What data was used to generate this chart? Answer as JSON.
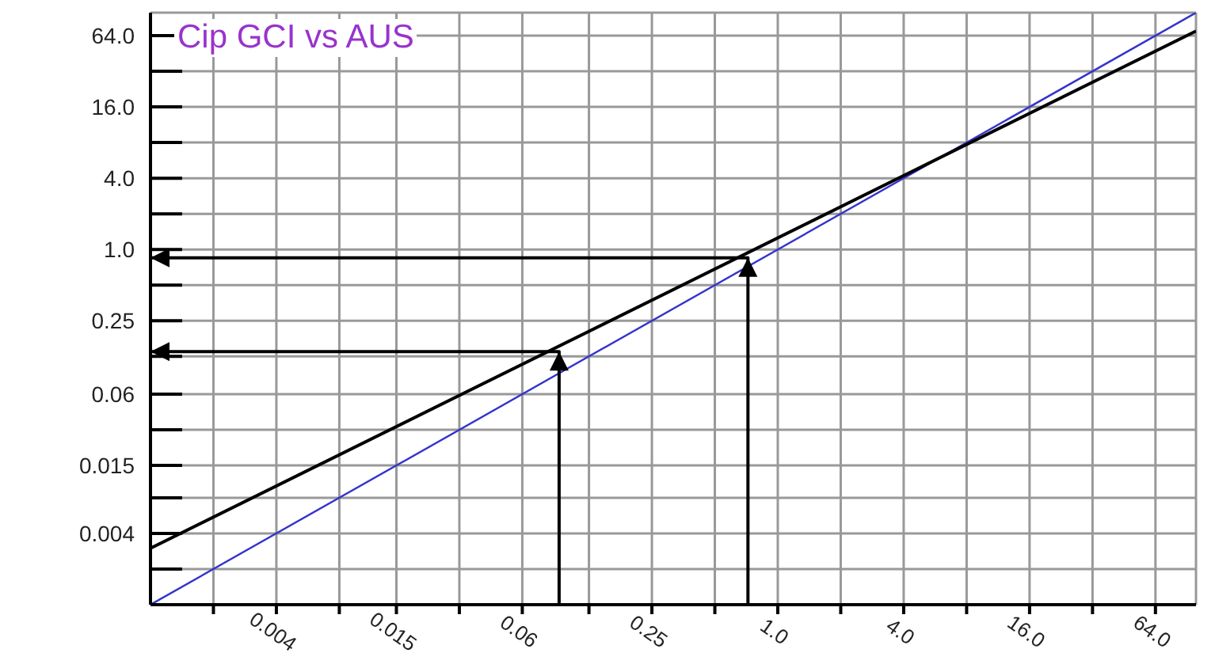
{
  "chart_data": {
    "type": "line",
    "title": "Cip GCI vs AUS",
    "log": "xy",
    "grid": true,
    "xlim": [
      0.001,
      100
    ],
    "ylim": [
      0.001,
      100
    ],
    "xticks": [
      {
        "value": 0.002,
        "label": null
      },
      0.004,
      {
        "value": 0.008,
        "label": null
      },
      0.015,
      {
        "value": 0.03,
        "label": null
      },
      0.06,
      {
        "value": 0.125,
        "label": null
      },
      0.25,
      {
        "value": 0.5,
        "label": null
      },
      {
        "value": 1,
        "label": "1.0"
      },
      {
        "value": 2,
        "label": null
      },
      {
        "value": 4,
        "label": "4.0"
      },
      {
        "value": 8,
        "label": null
      },
      {
        "value": 16,
        "label": "16.0"
      },
      {
        "value": 32,
        "label": null
      },
      {
        "value": 64,
        "label": "64.0"
      }
    ],
    "yticks": [
      {
        "value": 0.002,
        "label": null
      },
      0.004,
      {
        "value": 0.008,
        "label": null
      },
      0.015,
      {
        "value": 0.03,
        "label": null
      },
      0.06,
      {
        "value": 0.125,
        "label": null
      },
      0.25,
      {
        "value": 0.5,
        "label": null
      },
      {
        "value": 1,
        "label": "1.0"
      },
      {
        "value": 2,
        "label": null
      },
      {
        "value": 4,
        "label": "4.0"
      },
      {
        "value": 8,
        "label": null
      },
      {
        "value": 16,
        "label": "16.0"
      },
      {
        "value": 32,
        "label": null
      },
      {
        "value": 64,
        "label": "64.0"
      }
    ],
    "series": [
      {
        "color": "#3333cc",
        "x": [
          0.001,
          100
        ],
        "values": [
          0.001,
          100
        ]
      },
      {
        "color": "#000000",
        "x": [
          0.001,
          100
        ],
        "values": [
          0.003,
          70
        ]
      },
      {
        "color": "#000000",
        "x": [
          0.09,
          0.09,
          0.001
        ],
        "values": [
          0.001,
          0.137,
          0.137
        ]
      },
      {
        "color": "#000000",
        "x": [
          0.72,
          0.72,
          0.001
        ],
        "values": [
          0.001,
          0.85,
          0.85
        ]
      }
    ]
  }
}
